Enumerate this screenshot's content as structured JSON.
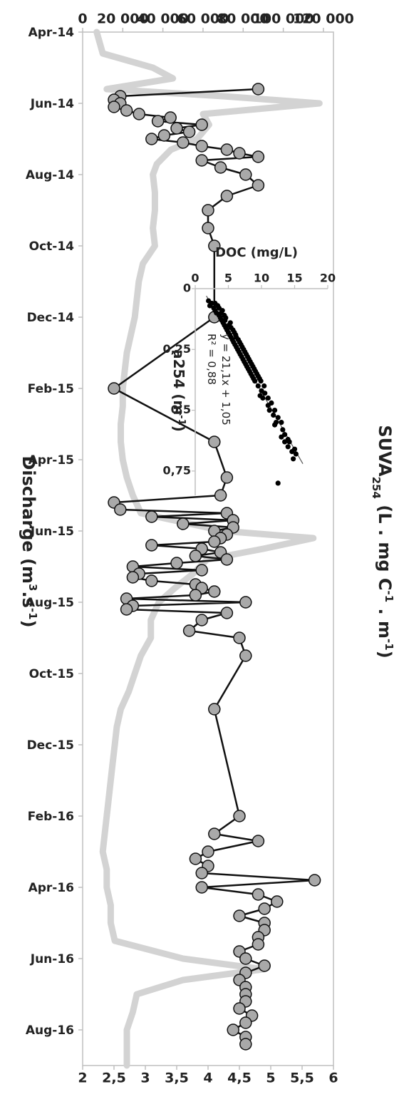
{
  "chart_data": [
    {
      "type": "line",
      "xlabel": "",
      "x_ticks": [
        "Apr-14",
        "Jun-14",
        "Aug-14",
        "Oct-14",
        "Dec-14",
        "Feb-15",
        "Apr-15",
        "Jun-15",
        "Aug-15",
        "Oct-15",
        "Dec-15",
        "Feb-16",
        "Apr-16",
        "Jun-16",
        "Aug-16"
      ],
      "ylabel_left": "Discharge (m3.s-1)",
      "ylabel_left_parts": {
        "main": "Discharge (m",
        "sup1": "3",
        "mid": ".s",
        "sup2": "-1",
        "end": ")"
      },
      "y_left_ticks": [
        "0",
        "20 000",
        "40 000",
        "60 000",
        "80 000",
        "100 000",
        "120 000"
      ],
      "ylim_left": [
        0,
        125000
      ],
      "ylabel_right": "SUVA254 (L . mg C-1 . m-1)",
      "ylabel_right_parts": {
        "main": "SUVA",
        "sub": "254",
        "mid1": " (L . mg C",
        "sup1": "-1",
        "mid2": " . m",
        "sup2": "-1",
        "end": ")"
      },
      "y_right_ticks": [
        "2",
        "2,5",
        "3",
        "3,5",
        "4",
        "4,5",
        "5",
        "5,5",
        "6"
      ],
      "ylim_right": [
        2,
        6
      ],
      "xlim": [
        0,
        29
      ],
      "discharge": {
        "color": "#d3d3d3",
        "x": [
          0,
          0.6,
          1,
          1.3,
          1.6,
          1.8,
          2,
          2.3,
          2.6,
          3,
          3.3,
          3.7,
          4,
          4.5,
          5,
          5.5,
          6,
          6.5,
          7,
          7.5,
          8,
          8.5,
          9,
          9.5,
          10,
          10.5,
          11,
          11.5,
          12,
          12.5,
          13,
          13.5,
          14,
          14.2,
          14.5,
          14.8,
          15.2,
          15.6,
          16,
          16.5,
          17,
          17.5,
          18,
          18.5,
          19,
          19.5,
          20,
          20.5,
          21,
          21.5,
          22,
          22.5,
          23,
          23.5,
          24,
          24.5,
          25,
          25.5,
          26,
          26.3,
          26.6,
          27,
          27.5,
          28,
          28.5,
          29
        ],
        "y": [
          7000,
          10000,
          35000,
          45000,
          12000,
          70000,
          118000,
          60000,
          63000,
          57000,
          44000,
          37000,
          35000,
          36000,
          36000,
          35000,
          36000,
          30000,
          28000,
          27000,
          26000,
          24000,
          22000,
          21000,
          20000,
          20000,
          19000,
          19000,
          20000,
          22000,
          25000,
          29000,
          70000,
          115000,
          90000,
          62000,
          55000,
          46000,
          38000,
          34000,
          34000,
          29000,
          26000,
          23000,
          19000,
          17000,
          16000,
          15000,
          14000,
          13000,
          12000,
          11000,
          10000,
          12000,
          12000,
          14000,
          14000,
          16000,
          50000,
          90000,
          50000,
          27000,
          25000,
          22000,
          22000,
          22000
        ]
      },
      "suva": {
        "color": "#a9a9a9",
        "x": [
          1.6,
          1.8,
          1.9,
          2.0,
          2.1,
          2.2,
          2.3,
          2.4,
          2.5,
          2.6,
          2.7,
          2.8,
          2.9,
          3.0,
          3.1,
          3.2,
          3.3,
          3.4,
          3.5,
          3.6,
          3.8,
          4.0,
          4.3,
          4.6,
          5.0,
          5.5,
          6.0,
          8.0,
          10.0,
          11.5,
          12.5,
          13.0,
          13.2,
          13.4,
          13.5,
          13.6,
          13.7,
          13.8,
          13.9,
          14.0,
          14.1,
          14.2,
          14.3,
          14.4,
          14.5,
          14.6,
          14.7,
          14.8,
          14.9,
          15.0,
          15.1,
          15.2,
          15.3,
          15.4,
          15.5,
          15.6,
          15.7,
          15.8,
          15.9,
          16.0,
          16.1,
          16.2,
          16.3,
          16.5,
          16.8,
          17.0,
          17.5,
          19.0,
          22.0,
          22.5,
          22.7,
          23.0,
          23.2,
          23.4,
          23.6,
          23.8,
          24.0,
          24.2,
          24.4,
          24.6,
          24.8,
          25.0,
          25.2,
          25.4,
          25.6,
          25.8,
          26.0,
          26.2,
          26.4,
          26.6,
          26.8,
          27.0,
          27.2,
          27.4,
          27.6,
          27.8,
          28.0,
          28.2,
          28.4
        ],
        "y": [
          4.8,
          2.6,
          2.5,
          2.6,
          2.5,
          2.7,
          2.9,
          3.4,
          3.2,
          3.9,
          3.5,
          3.7,
          3.3,
          3.1,
          3.6,
          3.9,
          4.3,
          4.5,
          4.8,
          3.9,
          4.2,
          4.6,
          4.8,
          4.3,
          4.0,
          4.0,
          4.1,
          4.1,
          2.5,
          4.1,
          4.3,
          4.2,
          2.5,
          2.6,
          4.3,
          3.1,
          4.4,
          3.6,
          4.4,
          4.1,
          4.3,
          4.2,
          4.1,
          3.1,
          3.9,
          4.2,
          3.8,
          4.3,
          3.5,
          2.8,
          3.9,
          2.9,
          2.8,
          3.1,
          3.8,
          3.9,
          4.1,
          3.8,
          2.7,
          4.6,
          2.8,
          2.7,
          4.3,
          3.9,
          3.7,
          4.5,
          4.6,
          4.1,
          4.5,
          4.1,
          4.8,
          4.0,
          3.8,
          4.0,
          3.9,
          5.7,
          3.9,
          4.8,
          5.1,
          4.9,
          4.5,
          4.9,
          4.9,
          4.8,
          4.8,
          4.5,
          4.6,
          4.9,
          4.6,
          4.5,
          4.6,
          4.6,
          4.6,
          4.5,
          4.7,
          4.6,
          4.4,
          4.6,
          4.6
        ]
      }
    },
    {
      "type": "scatter",
      "xlabel": "a254 (m-1)",
      "xlabel_parts": {
        "main": "a254 (m",
        "sup": "-1",
        "end": ")"
      },
      "ylabel": "DOC (mg/L)",
      "x_ticks": [
        "0",
        "0,25",
        "0,5",
        "0,75"
      ],
      "y_ticks": [
        "0",
        "5",
        "10",
        "15",
        "20"
      ],
      "xlim": [
        0,
        0.85
      ],
      "ylim": [
        0,
        20
      ],
      "equation": "y = 21,1x + 1,05",
      "r2": "R² = 0,88",
      "trend": {
        "slope": 21.1,
        "intercept": 1.05
      },
      "points": {
        "x": [
          0.05,
          0.06,
          0.06,
          0.07,
          0.07,
          0.08,
          0.08,
          0.09,
          0.09,
          0.1,
          0.1,
          0.11,
          0.11,
          0.12,
          0.12,
          0.13,
          0.13,
          0.14,
          0.14,
          0.15,
          0.15,
          0.16,
          0.16,
          0.17,
          0.17,
          0.18,
          0.18,
          0.19,
          0.19,
          0.2,
          0.2,
          0.21,
          0.21,
          0.22,
          0.22,
          0.23,
          0.23,
          0.24,
          0.24,
          0.25,
          0.25,
          0.26,
          0.26,
          0.27,
          0.27,
          0.28,
          0.28,
          0.29,
          0.29,
          0.3,
          0.3,
          0.31,
          0.31,
          0.32,
          0.32,
          0.33,
          0.33,
          0.34,
          0.34,
          0.35,
          0.35,
          0.36,
          0.36,
          0.37,
          0.37,
          0.38,
          0.38,
          0.4,
          0.4,
          0.42,
          0.43,
          0.44,
          0.45,
          0.45,
          0.47,
          0.48,
          0.5,
          0.5,
          0.52,
          0.53,
          0.55,
          0.55,
          0.56,
          0.58,
          0.6,
          0.61,
          0.62,
          0.63,
          0.63,
          0.65,
          0.66,
          0.67,
          0.68,
          0.7
        ],
        "y": [
          2.0,
          2.5,
          3.0,
          2.2,
          3.4,
          2.8,
          3.6,
          3.0,
          4.1,
          3.2,
          3.9,
          3.6,
          4.4,
          3.8,
          4.6,
          4.0,
          4.5,
          4.2,
          5.3,
          4.4,
          5.1,
          4.6,
          5.4,
          4.8,
          5.7,
          5.0,
          5.9,
          5.2,
          6.1,
          5.4,
          6.2,
          5.6,
          6.5,
          5.8,
          6.7,
          6.0,
          6.9,
          6.2,
          7.1,
          6.4,
          7.3,
          6.6,
          7.5,
          6.8,
          7.7,
          7.0,
          7.9,
          7.2,
          8.1,
          7.4,
          8.3,
          7.6,
          8.5,
          7.8,
          8.7,
          8.0,
          8.9,
          8.2,
          9.1,
          8.4,
          9.3,
          8.6,
          9.5,
          8.8,
          9.7,
          9.0,
          9.9,
          9.5,
          10.4,
          10.0,
          10.5,
          9.8,
          10.2,
          11.0,
          11.5,
          11.0,
          12.0,
          11.2,
          11.8,
          12.5,
          12.2,
          13.0,
          12.0,
          13.2,
          13.5,
          13.0,
          14.0,
          13.5,
          14.2,
          14.0,
          15.0,
          14.6,
          15.2,
          14.8
        ]
      },
      "outlier": {
        "x": [
          0.8
        ],
        "y": [
          12.5
        ]
      }
    }
  ]
}
